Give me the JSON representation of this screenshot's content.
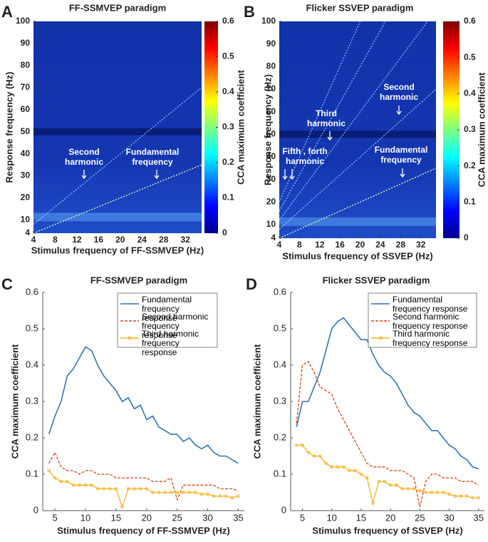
{
  "chart_data": [
    {
      "type": "heatmap",
      "panel": "A",
      "title": "FF-SSMVEP paradigm",
      "x_label": "Stimulus frequency of FF-SSMVEP (Hz)",
      "y_label": "Response frequency (Hz)",
      "xlim": [
        4,
        35
      ],
      "xticks": [
        4,
        8,
        12,
        16,
        20,
        24,
        28,
        32
      ],
      "ylim": [
        4,
        100
      ],
      "yticks": [
        4,
        10,
        20,
        30,
        40,
        50,
        60,
        70,
        80,
        90,
        100
      ],
      "harmonics": [
        1,
        2
      ],
      "dark_band_hz": 50,
      "alpha_band_hz": 11,
      "colorbar": {
        "label": "CCA maximum coefficient",
        "lim": [
          0,
          0.6
        ],
        "ticks": [
          0,
          0.1,
          0.2,
          0.3,
          0.4,
          0.5,
          0.6
        ]
      },
      "annotations": [
        "Second harmonic",
        "Fundamental frequency"
      ]
    },
    {
      "type": "heatmap",
      "panel": "B",
      "title": "Flicker SSVEP paradigm",
      "x_label": "Stimulus frequency of SSVEP (Hz)",
      "y_label": "Response frequency (Hz)",
      "xlim": [
        4,
        35
      ],
      "xticks": [
        4,
        8,
        12,
        16,
        20,
        24,
        28,
        32
      ],
      "ylim": [
        4,
        100
      ],
      "yticks": [
        4,
        10,
        20,
        30,
        40,
        50,
        60,
        70,
        80,
        90,
        100
      ],
      "harmonics": [
        1,
        2,
        3,
        4,
        5
      ],
      "dark_band_hz": 50,
      "alpha_band_hz": 11,
      "colorbar": {
        "label": "CCA maximum coefficient",
        "lim": [
          0,
          0.6
        ],
        "ticks": [
          0,
          0.1,
          0.2,
          0.3,
          0.4,
          0.5,
          0.6
        ]
      },
      "annotations": [
        "Fifth , forth harmonic",
        "Third harmonic",
        "Second harmonic",
        "Fundamental frequency"
      ]
    },
    {
      "type": "line",
      "panel": "C",
      "title": "FF-SSMVEP paradigm",
      "x_label": "Stimulus frequency of FF-SSMVEP (Hz)",
      "y_label": "CCA maximum coefficient",
      "xlim": [
        3,
        36
      ],
      "xticks": [
        5,
        10,
        15,
        20,
        25,
        30,
        35
      ],
      "ylim": [
        0,
        0.6
      ],
      "yticks": [
        0,
        0.1,
        0.2,
        0.3,
        0.4,
        0.5,
        0.6
      ],
      "x": [
        4,
        5,
        6,
        7,
        8,
        9,
        10,
        11,
        12,
        13,
        14,
        15,
        16,
        17,
        18,
        19,
        20,
        21,
        22,
        23,
        24,
        25,
        26,
        27,
        28,
        29,
        30,
        31,
        32,
        33,
        34,
        35
      ],
      "series": [
        {
          "name": "Fundamental frequency response",
          "color": "#2e75b6",
          "style": "solid",
          "values": [
            0.21,
            0.26,
            0.3,
            0.37,
            0.39,
            0.42,
            0.45,
            0.44,
            0.4,
            0.37,
            0.35,
            0.33,
            0.3,
            0.31,
            0.28,
            0.29,
            0.25,
            0.26,
            0.23,
            0.22,
            0.21,
            0.21,
            0.19,
            0.2,
            0.18,
            0.17,
            0.18,
            0.16,
            0.15,
            0.15,
            0.14,
            0.13
          ]
        },
        {
          "name": "Second harmonic frequency response",
          "color": "#d9441a",
          "style": "dashed",
          "values": [
            0.13,
            0.16,
            0.12,
            0.11,
            0.11,
            0.1,
            0.11,
            0.11,
            0.1,
            0.1,
            0.1,
            0.09,
            0.09,
            0.09,
            0.09,
            0.09,
            0.09,
            0.08,
            0.08,
            0.08,
            0.09,
            0.03,
            0.07,
            0.07,
            0.07,
            0.07,
            0.07,
            0.07,
            0.06,
            0.06,
            0.06,
            0.055
          ]
        },
        {
          "name": "Third harmonic frequency response",
          "color": "#f5b324",
          "style": "marker",
          "values": [
            0.11,
            0.09,
            0.08,
            0.08,
            0.07,
            0.07,
            0.07,
            0.07,
            0.06,
            0.06,
            0.06,
            0.06,
            0.01,
            0.06,
            0.06,
            0.06,
            0.06,
            0.05,
            0.05,
            0.05,
            0.05,
            0.05,
            0.05,
            0.05,
            0.05,
            0.045,
            0.045,
            0.04,
            0.04,
            0.04,
            0.035,
            0.04
          ]
        }
      ]
    },
    {
      "type": "line",
      "panel": "D",
      "title": "Flicker SSVEP paradigm",
      "x_label": "Stimulus frequency of SSVEP (Hz)",
      "y_label": "CCA maximum coefficient",
      "xlim": [
        3,
        36
      ],
      "xticks": [
        5,
        10,
        15,
        20,
        25,
        30,
        35
      ],
      "ylim": [
        0,
        0.6
      ],
      "yticks": [
        0,
        0.1,
        0.2,
        0.3,
        0.4,
        0.5,
        0.6
      ],
      "x": [
        4,
        5,
        6,
        7,
        8,
        9,
        10,
        11,
        12,
        13,
        14,
        15,
        16,
        17,
        18,
        19,
        20,
        21,
        22,
        23,
        24,
        25,
        26,
        27,
        28,
        29,
        30,
        31,
        32,
        33,
        34,
        35
      ],
      "series": [
        {
          "name": "Fundamental frequency response",
          "color": "#2e75b6",
          "style": "solid",
          "values": [
            0.23,
            0.3,
            0.3,
            0.34,
            0.38,
            0.44,
            0.5,
            0.52,
            0.53,
            0.51,
            0.49,
            0.47,
            0.47,
            0.43,
            0.4,
            0.38,
            0.37,
            0.35,
            0.32,
            0.29,
            0.27,
            0.26,
            0.24,
            0.22,
            0.22,
            0.2,
            0.18,
            0.17,
            0.15,
            0.14,
            0.12,
            0.115
          ]
        },
        {
          "name": "Second harmonic frequency response",
          "color": "#d9441a",
          "style": "dashed",
          "values": [
            0.24,
            0.4,
            0.41,
            0.38,
            0.34,
            0.33,
            0.32,
            0.28,
            0.25,
            0.22,
            0.19,
            0.16,
            0.13,
            0.12,
            0.12,
            0.12,
            0.11,
            0.11,
            0.11,
            0.1,
            0.09,
            0.01,
            0.08,
            0.1,
            0.1,
            0.09,
            0.09,
            0.09,
            0.08,
            0.08,
            0.08,
            0.07
          ]
        },
        {
          "name": "Third harmonic frequency response",
          "color": "#f5b324",
          "style": "marker",
          "values": [
            0.18,
            0.18,
            0.16,
            0.15,
            0.15,
            0.13,
            0.12,
            0.12,
            0.12,
            0.11,
            0.11,
            0.1,
            0.09,
            0.02,
            0.08,
            0.08,
            0.07,
            0.07,
            0.06,
            0.06,
            0.06,
            0.055,
            0.05,
            0.05,
            0.05,
            0.05,
            0.045,
            0.04,
            0.04,
            0.04,
            0.035,
            0.035
          ]
        }
      ]
    }
  ]
}
